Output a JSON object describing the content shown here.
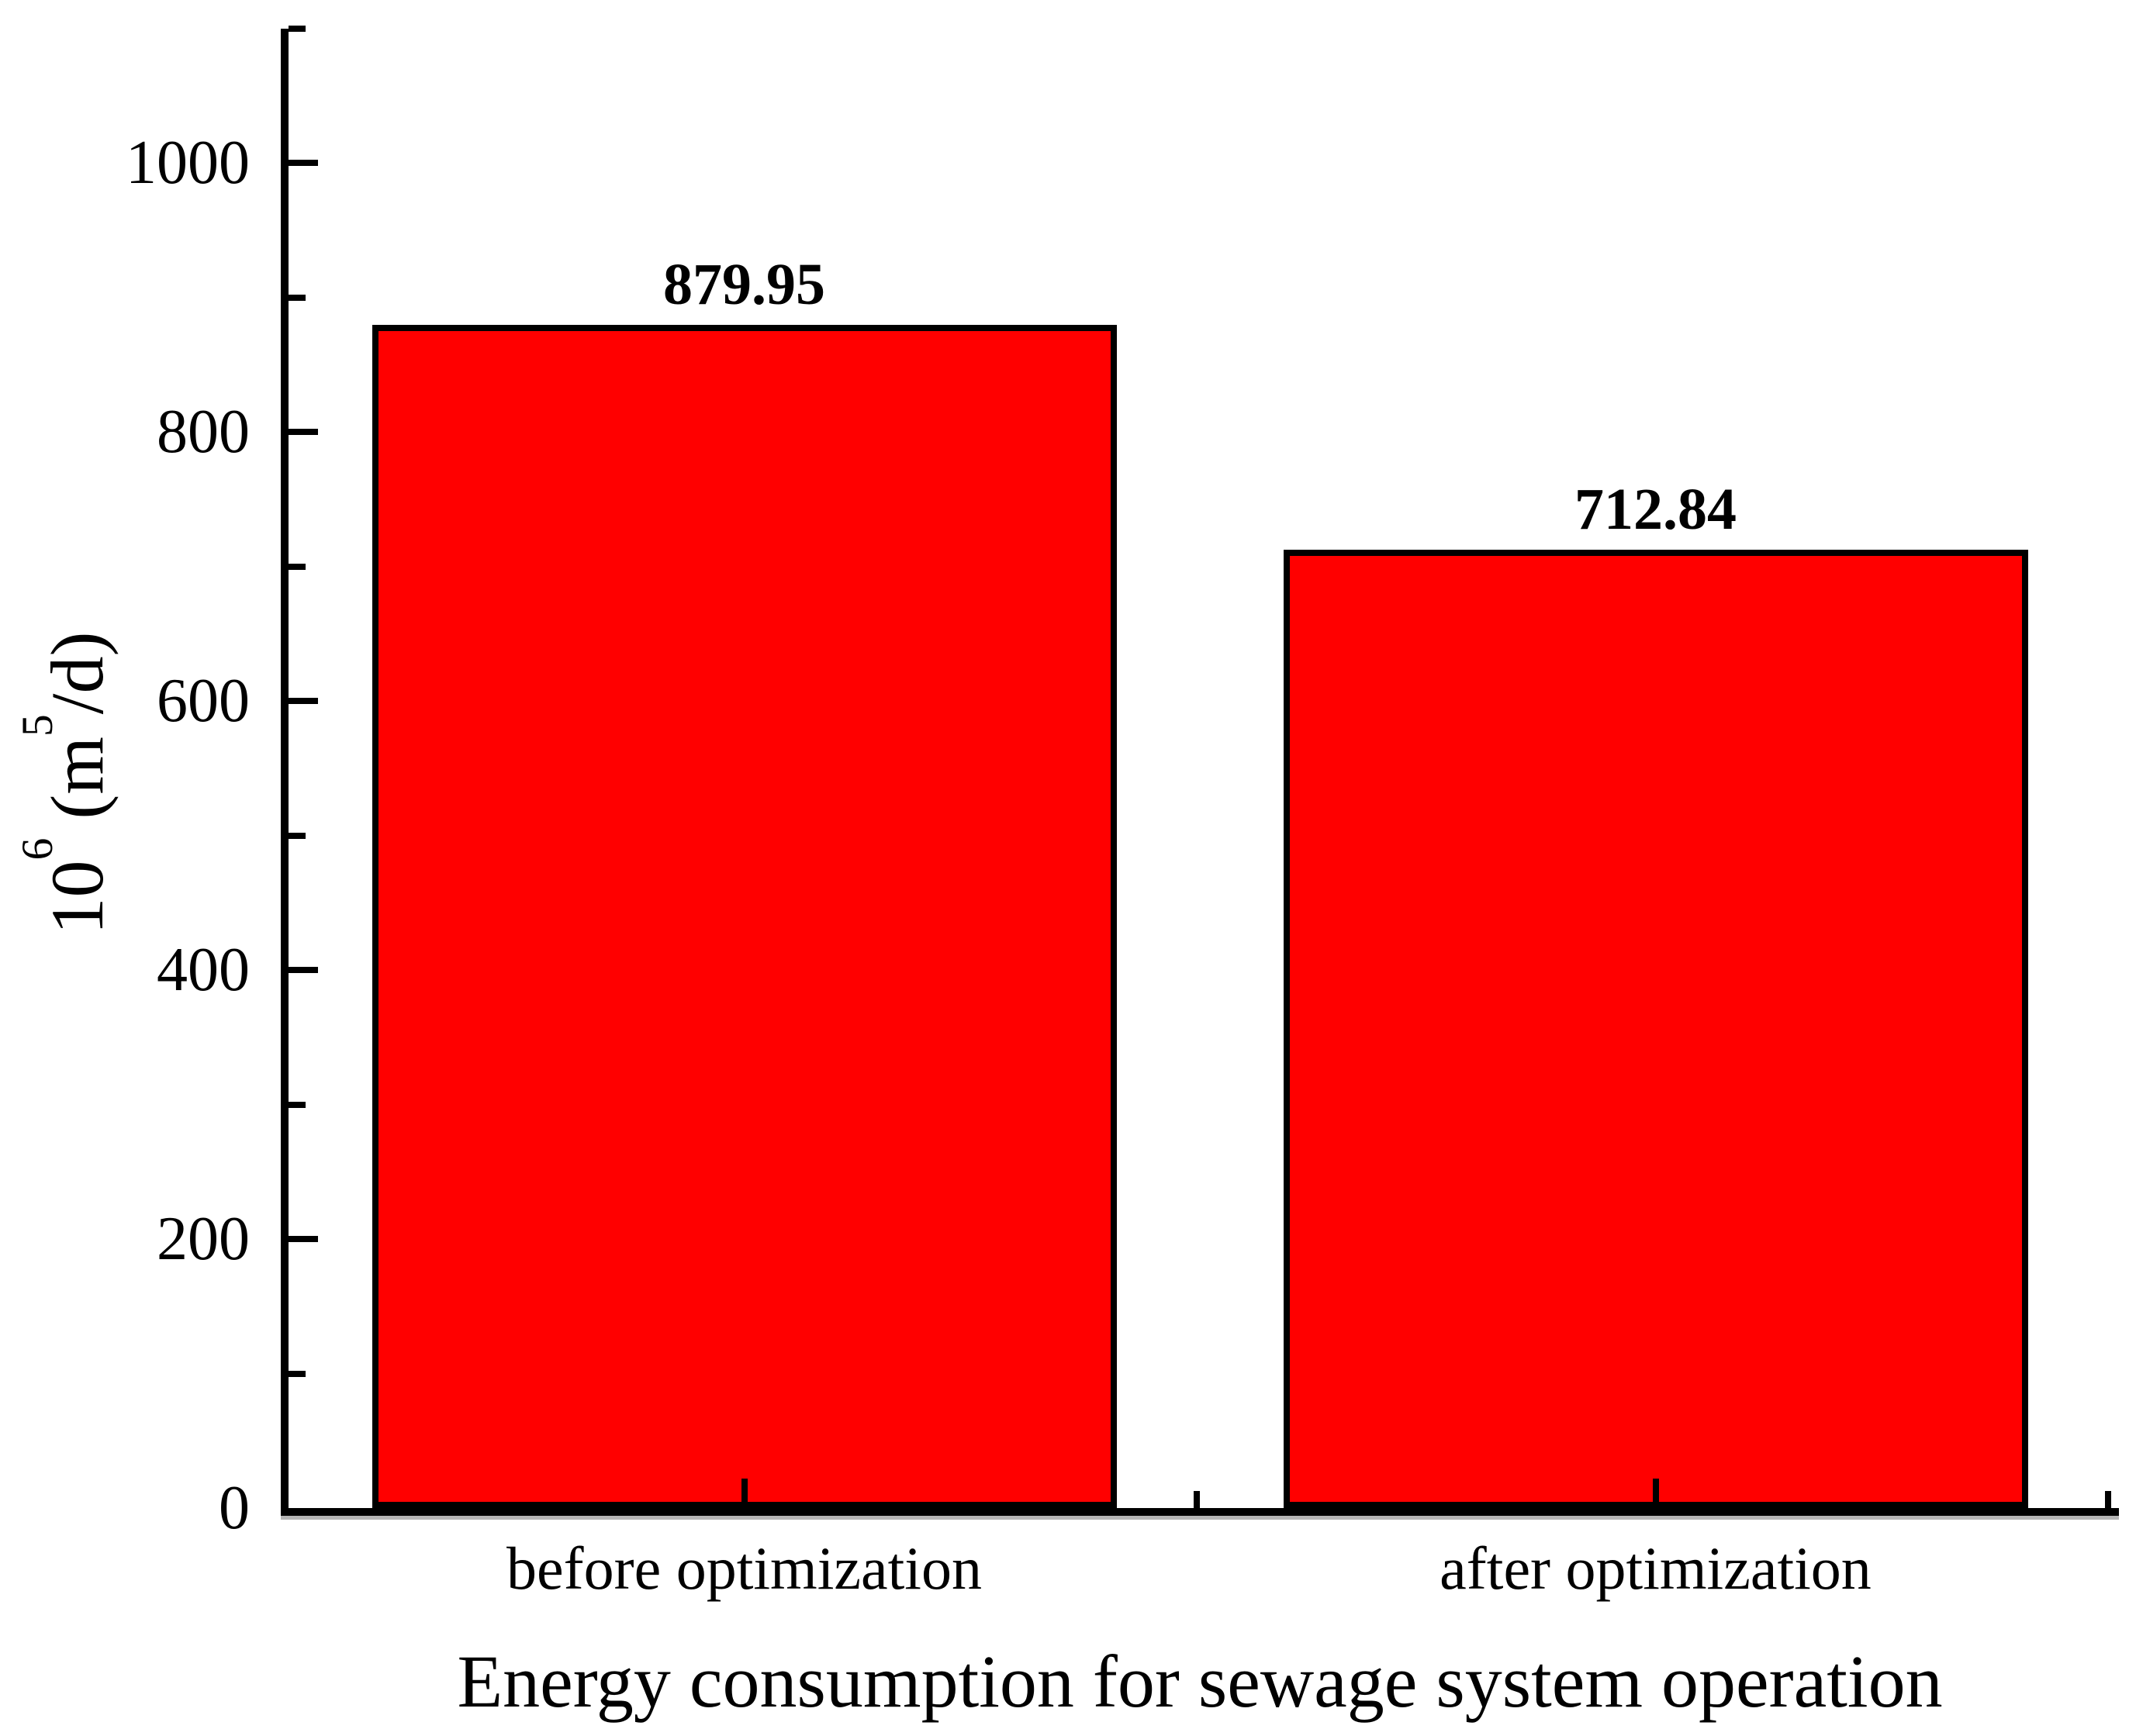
{
  "chart_data": {
    "type": "bar",
    "title": "",
    "categories": [
      "before optimization",
      "after optimization"
    ],
    "values": [
      879.95,
      712.84
    ],
    "value_labels": [
      "879.95",
      "712.84"
    ],
    "xlabel": "Energy consumption for sewage system operation",
    "ylabel": {
      "base": "10",
      "base_exp": "6",
      "mid": " (m",
      "unit_exp": "5",
      "close": "/d)"
    },
    "ylabel_plain": "10^6 (m^5/d)",
    "ylim": [
      0,
      1100
    ],
    "yticks_major": [
      0,
      200,
      400,
      600,
      800,
      1000
    ],
    "yticks_minor": [
      100,
      300,
      500,
      700,
      900,
      1100
    ],
    "grid": false,
    "legend": null,
    "colors": {
      "bar_fill": "#FF0000",
      "bar_edge": "#000000",
      "axis": "#000000",
      "text": "#000000",
      "background": "#FFFFFF"
    }
  }
}
